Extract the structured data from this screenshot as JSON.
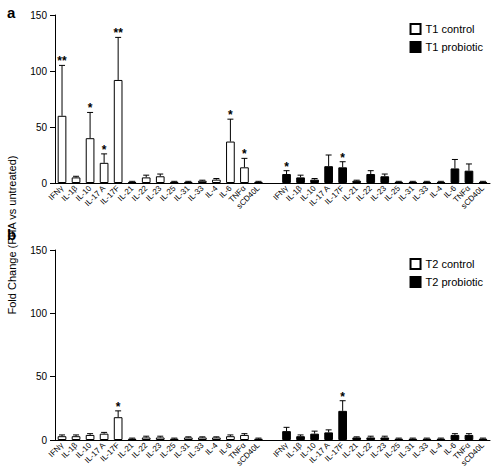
{
  "chart_data": [
    {
      "type": "bar",
      "title": "a",
      "ylabel": "Fold Change (PHA vs untreated)",
      "categories": [
        "IFNγ",
        "IL-1β",
        "IL-10",
        "IL-17 A",
        "IL-17F",
        "IL-21",
        "IL-22",
        "IL-23",
        "IL-25",
        "IL-31",
        "IL-33",
        "IL-4",
        "IL-6",
        "TNFα",
        "sCD40L"
      ],
      "series": [
        {
          "name": "T1 control",
          "color": "#ffffff",
          "values": [
            60,
            5,
            40,
            18,
            92,
            1,
            5,
            6,
            1,
            1,
            2,
            3,
            37,
            14,
            1
          ],
          "errors": [
            45,
            1,
            23,
            8,
            38,
            0.5,
            2,
            2,
            0.5,
            0.5,
            0.5,
            1,
            20,
            8,
            0.5
          ],
          "significance": [
            "**",
            null,
            "*",
            "*",
            "**",
            null,
            null,
            null,
            null,
            null,
            null,
            null,
            "*",
            "*",
            null
          ]
        },
        {
          "name": "T1 probiotic",
          "color": "#000000",
          "values": [
            8,
            5,
            3,
            15,
            14,
            2,
            8,
            6,
            1,
            1,
            1,
            1,
            13,
            11,
            1
          ],
          "errors": [
            3,
            2,
            1,
            10,
            5,
            0.5,
            3,
            2,
            0.5,
            0.5,
            0.5,
            0.5,
            8,
            6,
            0.5
          ],
          "significance": [
            "*",
            null,
            null,
            null,
            "*",
            null,
            null,
            null,
            null,
            null,
            null,
            null,
            null,
            null,
            null
          ]
        }
      ],
      "ylim": [
        0,
        150
      ],
      "yticks": [
        0,
        50,
        100,
        150
      ],
      "grid": false,
      "legend": "upper right"
    },
    {
      "type": "bar",
      "title": "b",
      "categories": [
        "IFNγ",
        "IL-1β",
        "IL-10",
        "IL-17 A",
        "IL-17F",
        "IL-21",
        "IL-22",
        "IL-23",
        "IL-25",
        "IL-31",
        "IL-33",
        "IL-4",
        "IL-6",
        "TNFα",
        "sCD40L"
      ],
      "series": [
        {
          "name": "T2 control",
          "color": "#ffffff",
          "values": [
            3,
            3,
            4,
            5,
            18,
            1,
            2,
            2,
            1,
            2,
            2,
            2,
            3,
            4,
            1
          ],
          "errors": [
            1,
            1,
            1,
            1,
            5,
            0.5,
            1,
            1,
            0.5,
            0.5,
            0.5,
            0.5,
            1,
            1,
            0.5
          ],
          "significance": [
            null,
            null,
            null,
            null,
            "*",
            null,
            null,
            null,
            null,
            null,
            null,
            null,
            null,
            null,
            null
          ]
        },
        {
          "name": "T2 probiotic",
          "color": "#000000",
          "values": [
            7,
            3,
            5,
            6,
            23,
            2,
            2,
            2,
            1,
            1,
            1,
            1,
            4,
            4,
            1
          ],
          "errors": [
            3,
            1,
            2,
            2,
            8,
            0.5,
            1,
            1,
            0.5,
            0.5,
            0.5,
            0.5,
            1,
            1,
            0.5
          ],
          "significance": [
            null,
            null,
            null,
            null,
            "*",
            null,
            null,
            null,
            null,
            null,
            null,
            null,
            null,
            null,
            null
          ]
        }
      ],
      "ylim": [
        0,
        150
      ],
      "yticks": [
        0,
        50,
        100,
        150
      ],
      "grid": false,
      "legend": "upper right"
    }
  ]
}
